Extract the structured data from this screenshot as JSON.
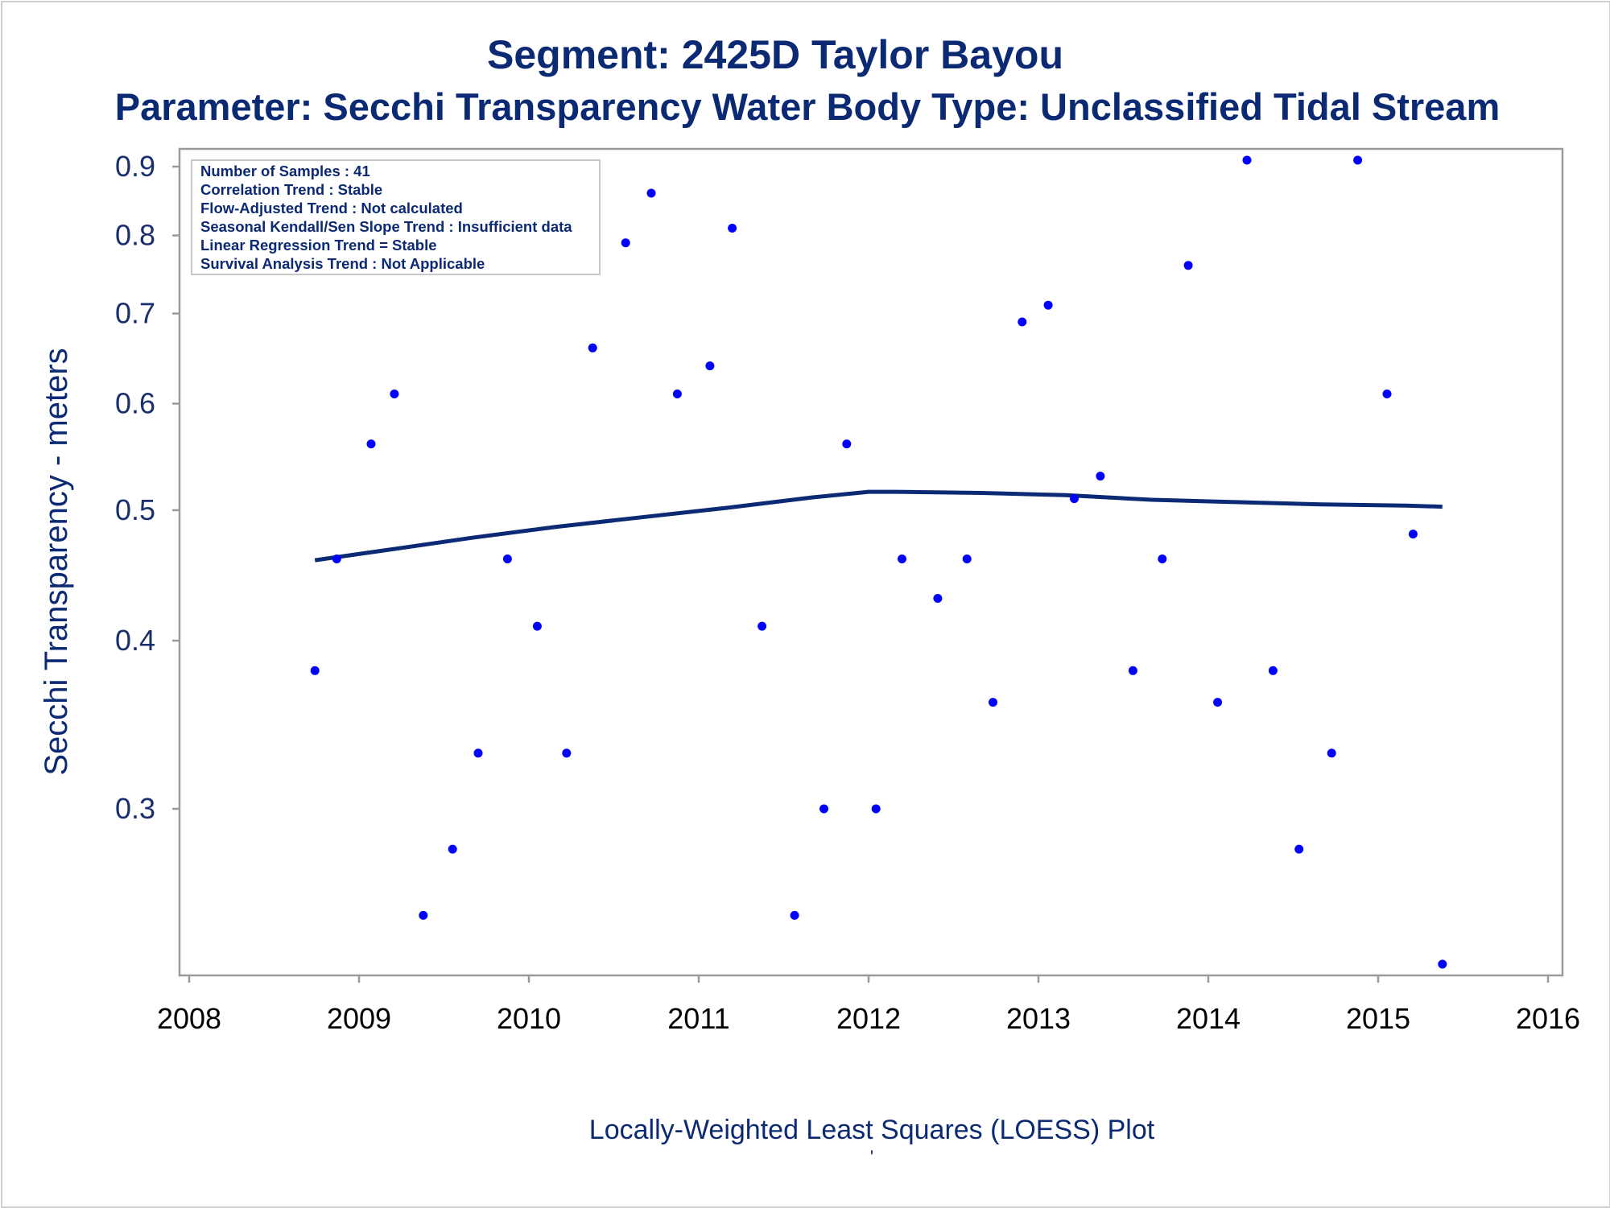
{
  "chart_data": {
    "type": "scatter",
    "title": "Segment: 2425D  Taylor Bayou",
    "subtitle": "Parameter: Secchi Transparency   Water Body Type: Unclassified Tidal Stream",
    "xlabel": "Locally-Weighted Least Squares (LOESS) Plot",
    "ylabel": "Secchi Transparency - meters",
    "footer_mark": "'",
    "y_scale": "log",
    "xlim": [
      "2008-01-01",
      "2016-01-01"
    ],
    "ylim": [
      0.225,
      0.93
    ],
    "grid": false,
    "x_ticks": [
      "2008",
      "2009",
      "2010",
      "2011",
      "2012",
      "2013",
      "2014",
      "2015",
      "2016"
    ],
    "y_ticks": [
      "0.3",
      "0.4",
      "0.5",
      "0.6",
      "0.7",
      "0.8",
      "0.9"
    ],
    "info_box": [
      "Number of Samples : 41",
      "Correlation Trend : Stable",
      "Flow-Adjusted Trend : Not calculated",
      "Seasonal Kendall/Sen Slope Trend : Insufficient data",
      "Linear Regression Trend = Stable",
      "Survival Analysis Trend : Not Applicable"
    ],
    "series": [
      {
        "type": "scatter",
        "color": "#0000ff",
        "points": [
          [
            "2008-09-28",
            0.38
          ],
          [
            "2008-11-14",
            0.46
          ],
          [
            "2009-01-27",
            0.56
          ],
          [
            "2009-03-18",
            0.61
          ],
          [
            "2009-05-19",
            0.25
          ],
          [
            "2009-07-21",
            0.28
          ],
          [
            "2009-09-14",
            0.33
          ],
          [
            "2009-11-16",
            0.46
          ],
          [
            "2010-01-19",
            0.41
          ],
          [
            "2010-03-23",
            0.33
          ],
          [
            "2010-05-18",
            0.66
          ],
          [
            "2010-07-28",
            0.79
          ],
          [
            "2010-09-21",
            0.86
          ],
          [
            "2010-11-16",
            0.61
          ],
          [
            "2011-01-25",
            0.64
          ],
          [
            "2011-03-14",
            0.81
          ],
          [
            "2011-05-17",
            0.41
          ],
          [
            "2011-07-26",
            0.25
          ],
          [
            "2011-09-27",
            0.3
          ],
          [
            "2011-11-15",
            0.56
          ],
          [
            "2012-01-17",
            0.3
          ],
          [
            "2012-03-13",
            0.46
          ],
          [
            "2012-05-29",
            0.43
          ],
          [
            "2012-07-31",
            0.46
          ],
          [
            "2012-09-25",
            0.36
          ],
          [
            "2012-11-27",
            0.69
          ],
          [
            "2013-01-22",
            0.71
          ],
          [
            "2013-03-19",
            0.51
          ],
          [
            "2013-05-14",
            0.53
          ],
          [
            "2013-07-23",
            0.38
          ],
          [
            "2013-09-24",
            0.46
          ],
          [
            "2013-11-19",
            0.76
          ],
          [
            "2014-01-21",
            0.36
          ],
          [
            "2014-03-25",
            0.91
          ],
          [
            "2014-05-20",
            0.38
          ],
          [
            "2014-07-15",
            0.28
          ],
          [
            "2014-09-23",
            0.33
          ],
          [
            "2014-11-18",
            0.91
          ],
          [
            "2015-01-20",
            0.61
          ],
          [
            "2015-03-17",
            0.48
          ],
          [
            "2015-05-19",
            0.23
          ]
        ]
      },
      {
        "type": "line",
        "color": "#0b2a73",
        "points": [
          [
            "2008-09-28",
            0.459
          ],
          [
            "2009-03-01",
            0.467
          ],
          [
            "2009-09-01",
            0.477
          ],
          [
            "2010-03-01",
            0.486
          ],
          [
            "2010-09-01",
            0.494
          ],
          [
            "2011-03-01",
            0.502
          ],
          [
            "2011-09-01",
            0.511
          ],
          [
            "2012-01-01",
            0.516
          ],
          [
            "2012-03-01",
            0.516
          ],
          [
            "2012-09-01",
            0.515
          ],
          [
            "2013-03-01",
            0.513
          ],
          [
            "2013-09-01",
            0.509
          ],
          [
            "2014-03-01",
            0.507
          ],
          [
            "2014-09-01",
            0.505
          ],
          [
            "2015-03-01",
            0.504
          ],
          [
            "2015-05-19",
            0.503
          ]
        ]
      }
    ]
  }
}
